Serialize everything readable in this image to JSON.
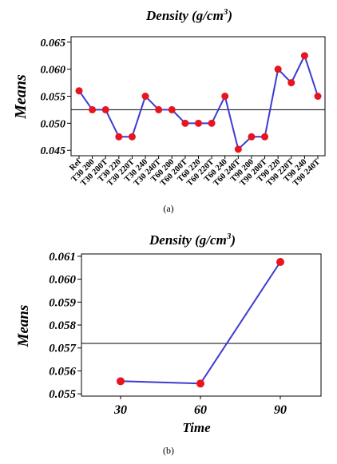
{
  "chart_data": [
    {
      "type": "line",
      "title": "Density (g/cm",
      "title_sup": "3",
      "title_end": ")",
      "ylabel": "Means",
      "xlabel": "",
      "ylim": [
        0.044,
        0.066
      ],
      "yticks": [
        "0.045",
        "0.050",
        "0.055",
        "0.060",
        "0.065"
      ],
      "ytick_values": [
        0.045,
        0.05,
        0.055,
        0.06,
        0.065
      ],
      "categories": [
        "Ref",
        "T30 200",
        "T30 200T",
        "T30 220",
        "T30 220T",
        "T30 240",
        "T30 240T",
        "T60 200",
        "T60 200T",
        "T60 220",
        "T60 220T",
        "T60 240",
        "T60 240T",
        "T90 200",
        "T90 200T",
        "T90 220",
        "T90 220T",
        "T90 240",
        "T90 240T"
      ],
      "values": [
        0.056,
        0.0525,
        0.0525,
        0.0475,
        0.0475,
        0.055,
        0.0525,
        0.0525,
        0.05,
        0.05,
        0.05,
        0.055,
        0.0452,
        0.0475,
        0.0475,
        0.06,
        0.0575,
        0.0625,
        0.055
      ],
      "reference_line": 0.0525,
      "grid": false,
      "caption": "(a)",
      "colors": {
        "line": "#3b3bd1",
        "marker": "#e8141e",
        "reference": "#000000"
      }
    },
    {
      "type": "line",
      "title": "Density (g/cm",
      "title_sup": "3",
      "title_end": ")",
      "ylabel": "Means",
      "xlabel": "Time",
      "ylim": [
        0.0549,
        0.0611
      ],
      "yticks": [
        "0.055",
        "0.056",
        "0.057",
        "0.058",
        "0.059",
        "0.060",
        "0.061"
      ],
      "ytick_values": [
        0.055,
        0.056,
        0.057,
        0.058,
        0.059,
        0.06,
        0.061
      ],
      "categories": [
        "30",
        "60",
        "90"
      ],
      "values": [
        0.05555,
        0.05545,
        0.06075
      ],
      "reference_line": 0.0572,
      "grid": false,
      "caption": "(b)",
      "colors": {
        "line": "#3b3bd1",
        "marker": "#e8141e",
        "reference": "#000000"
      }
    }
  ]
}
